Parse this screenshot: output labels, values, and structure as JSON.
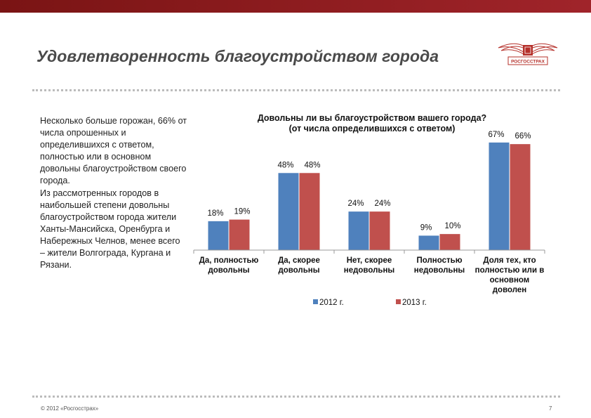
{
  "header": {
    "title": "Удовлетворенность благоустройством города"
  },
  "logo": {
    "text": "РОСГОССТРАХ"
  },
  "colors": {
    "topbar": "#8c1c1c",
    "series_2012": "#4f81bd",
    "series_2013": "#c0504d",
    "logo": "#b5302a"
  },
  "body_text": [
    "Несколько больше горожан, 66% от числа опрошенных и определившихся с ответом, полностью или в основном довольны благоустройством своего города.",
    "Из рассмотренных городов в наибольшей степени довольны благоустройством города жители Ханты-Мансийска, Оренбурга и Набережных Челнов, менее всего – жители Волгограда, Кургана и Рязани."
  ],
  "chart_data": {
    "type": "bar",
    "title": "Довольны ли вы благоустройством вашего города?",
    "subtitle": "(от числа определившихся с ответом)",
    "categories": [
      [
        "Да, полностью",
        "довольны"
      ],
      [
        "Да, скорее",
        "довольны"
      ],
      [
        "Нет, скорее",
        "недовольны"
      ],
      [
        "Полностью",
        "недовольны"
      ],
      [
        "Доля тех, кто",
        "полностью или в",
        "основном",
        "доволен"
      ]
    ],
    "series": [
      {
        "name": "2012 г.",
        "values": [
          18,
          48,
          24,
          9,
          67
        ],
        "labels": [
          "18%",
          "48%",
          "24%",
          "9%",
          "67%"
        ]
      },
      {
        "name": "2013  г.",
        "values": [
          19,
          48,
          24,
          10,
          66
        ],
        "labels": [
          "19%",
          "48%",
          "24%",
          "10%",
          "66%"
        ]
      }
    ],
    "ylim": [
      0,
      70
    ],
    "grid": false,
    "legend": "bottom"
  },
  "footer": {
    "copyright": "© 2012 «Росгосстрах»",
    "page_number": "7"
  }
}
